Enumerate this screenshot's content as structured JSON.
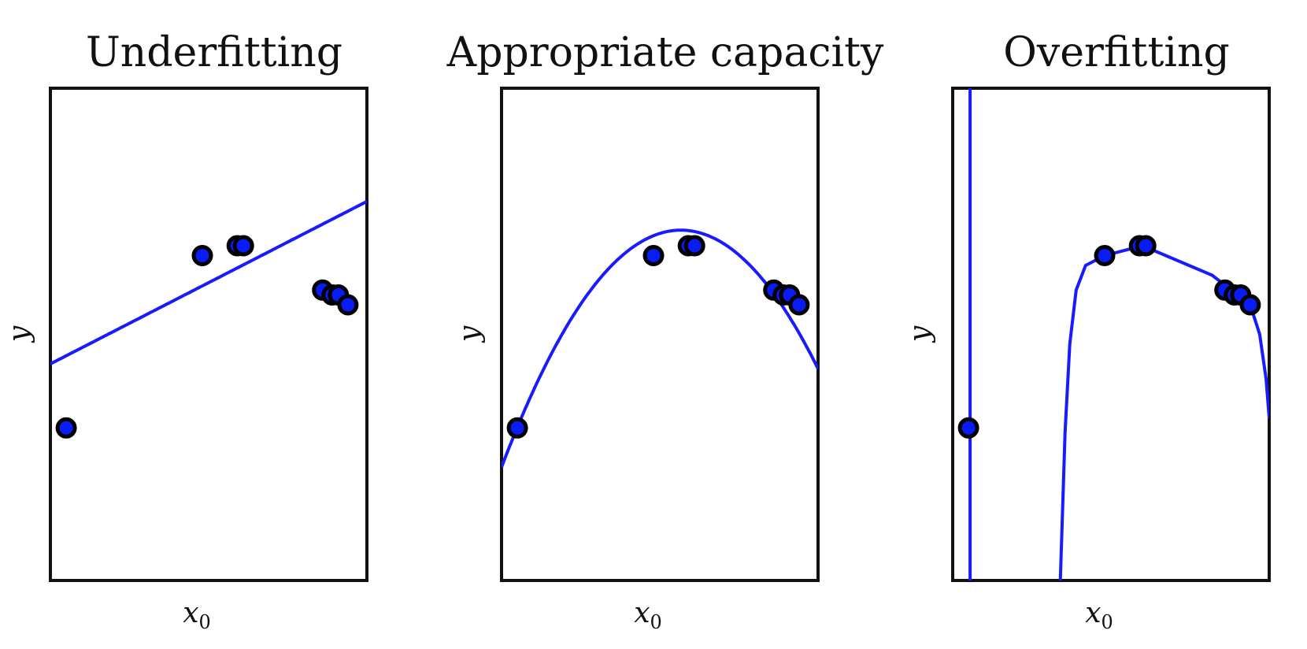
{
  "chart_data": [
    {
      "type": "scatter",
      "title": "Underfitting",
      "xlabel": "x",
      "xlabel_sub": "0",
      "ylabel": "y",
      "xlim": [
        0,
        1
      ],
      "ylim": [
        0,
        1
      ],
      "grid": false,
      "points": [
        {
          "x": 0.05,
          "y": 0.31
        },
        {
          "x": 0.48,
          "y": 0.66
        },
        {
          "x": 0.59,
          "y": 0.68
        },
        {
          "x": 0.61,
          "y": 0.68
        },
        {
          "x": 0.86,
          "y": 0.59
        },
        {
          "x": 0.89,
          "y": 0.58
        },
        {
          "x": 0.91,
          "y": 0.58
        },
        {
          "x": 0.94,
          "y": 0.56
        }
      ],
      "fit": {
        "kind": "linear",
        "coef": [
          0.44,
          0.33
        ]
      }
    },
    {
      "type": "scatter",
      "title": "Appropriate capacity",
      "xlabel": "x",
      "xlabel_sub": "0",
      "ylabel": "y",
      "xlim": [
        0,
        1
      ],
      "ylim": [
        0,
        1
      ],
      "grid": false,
      "points": [
        {
          "x": 0.05,
          "y": 0.31
        },
        {
          "x": 0.48,
          "y": 0.66
        },
        {
          "x": 0.59,
          "y": 0.68
        },
        {
          "x": 0.61,
          "y": 0.68
        },
        {
          "x": 0.86,
          "y": 0.59
        },
        {
          "x": 0.89,
          "y": 0.58
        },
        {
          "x": 0.91,
          "y": 0.58
        },
        {
          "x": 0.94,
          "y": 0.56
        }
      ],
      "fit": {
        "kind": "quadratic",
        "coef": [
          0.23,
          1.7,
          -1.5
        ]
      }
    },
    {
      "type": "scatter",
      "title": "Overfitting",
      "xlabel": "x",
      "xlabel_sub": "0",
      "ylabel": "y",
      "xlim": [
        0,
        1
      ],
      "ylim": [
        0,
        1
      ],
      "grid": false,
      "points": [
        {
          "x": 0.05,
          "y": 0.31
        },
        {
          "x": 0.48,
          "y": 0.66
        },
        {
          "x": 0.59,
          "y": 0.68
        },
        {
          "x": 0.61,
          "y": 0.68
        },
        {
          "x": 0.86,
          "y": 0.59
        },
        {
          "x": 0.89,
          "y": 0.58
        },
        {
          "x": 0.91,
          "y": 0.58
        },
        {
          "x": 0.94,
          "y": 0.56
        }
      ],
      "fit": {
        "kind": "high-degree",
        "segments": [
          [
            {
              "x": 0.055,
              "y": 0.0
            },
            {
              "x": 0.055,
              "y": 1.0
            }
          ],
          [
            {
              "x": 0.34,
              "y": 0.0
            },
            {
              "x": 0.345,
              "y": 0.1
            },
            {
              "x": 0.355,
              "y": 0.3
            },
            {
              "x": 0.37,
              "y": 0.48
            },
            {
              "x": 0.39,
              "y": 0.59
            },
            {
              "x": 0.42,
              "y": 0.64
            },
            {
              "x": 0.48,
              "y": 0.66
            },
            {
              "x": 0.6,
              "y": 0.68
            },
            {
              "x": 0.82,
              "y": 0.62
            },
            {
              "x": 0.94,
              "y": 0.56
            },
            {
              "x": 0.97,
              "y": 0.5
            },
            {
              "x": 0.99,
              "y": 0.41
            },
            {
              "x": 1.0,
              "y": 0.33
            }
          ]
        ]
      }
    }
  ]
}
